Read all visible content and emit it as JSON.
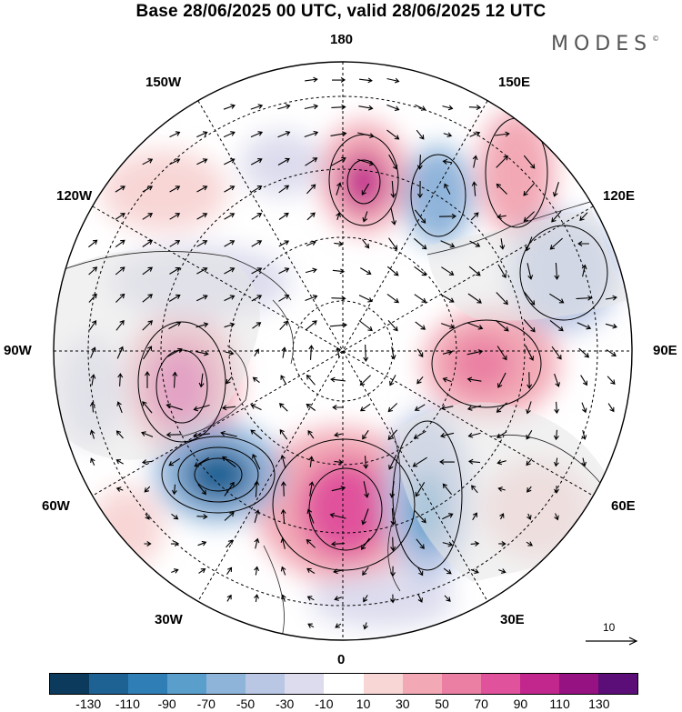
{
  "title": "Base 28/06/2025 00 UTC, valid 28/06/2025 12 UTC",
  "brand": "MODES",
  "brand_mark": "©",
  "longitude_labels": {
    "lon_180": "180",
    "lon_150w": "150W",
    "lon_150e": "150E",
    "lon_120w": "120W",
    "lon_120e": "120E",
    "lon_90w": "90W",
    "lon_90e": "90E",
    "lon_60w": "60W",
    "lon_60e": "60E",
    "lon_30w": "30W",
    "lon_30e": "30E",
    "lon_0": "0"
  },
  "reference_vector": "10",
  "colorbar": {
    "colors": [
      "#0b3a5c",
      "#1e6294",
      "#2f7fb6",
      "#5a9fcc",
      "#8fb4da",
      "#b9c6e4",
      "#dcdcee",
      "#ffffff",
      "#f8d6d6",
      "#f2a9b5",
      "#ea7fa3",
      "#e0529c",
      "#c2278e",
      "#961283",
      "#5c0e78"
    ],
    "ticks": [
      "-130",
      "-110",
      "-90",
      "-70",
      "-50",
      "-30",
      "-10",
      "10",
      "30",
      "50",
      "70",
      "90",
      "110",
      "130"
    ]
  }
}
